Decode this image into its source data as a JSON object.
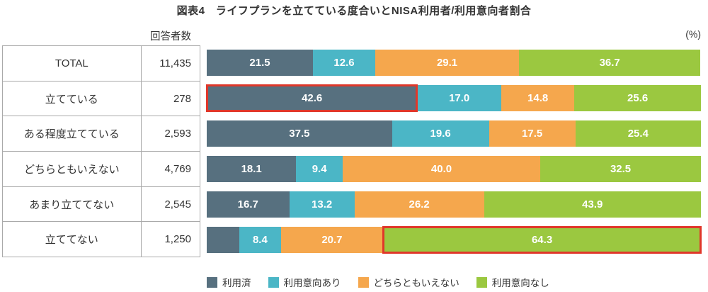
{
  "title": "図表4　ライフプランを立てている度合いとNISA利用者/利用意向者割合",
  "unit_label": "(%)",
  "chart_data": {
    "type": "bar",
    "stacked": true,
    "orientation": "horizontal",
    "unit": "%",
    "xlim": [
      0,
      100
    ],
    "respondent_header": "回答者数",
    "categories": [
      "TOTAL",
      "立てている",
      "ある程度立てている",
      "どちらともいえない",
      "あまり立ててない",
      "立ててない"
    ],
    "respondent_counts": [
      "11,435",
      "278",
      "2,593",
      "4,769",
      "2,545",
      "1,250"
    ],
    "series": [
      {
        "name": "利用済",
        "color": "#57707F",
        "values": [
          21.5,
          42.6,
          37.5,
          18.1,
          16.7,
          6.6
        ],
        "labels": [
          "21.5",
          "42.6",
          "37.5",
          "18.1",
          "16.7",
          ""
        ]
      },
      {
        "name": "利用意向あり",
        "color": "#4BB6C6",
        "values": [
          12.6,
          17.0,
          19.6,
          9.4,
          13.2,
          8.4
        ],
        "labels": [
          "12.6",
          "17.0",
          "19.6",
          "9.4",
          "13.2",
          "8.4"
        ]
      },
      {
        "name": "どちらともいえない",
        "color": "#F5A74D",
        "values": [
          29.1,
          14.8,
          17.5,
          40.0,
          26.2,
          20.7
        ],
        "labels": [
          "29.1",
          "14.8",
          "17.5",
          "40.0",
          "26.2",
          "20.7"
        ]
      },
      {
        "name": "利用意向なし",
        "color": "#9BC840",
        "values": [
          36.7,
          25.6,
          25.4,
          32.5,
          43.9,
          64.3
        ],
        "labels": [
          "36.7",
          "25.6",
          "25.4",
          "32.5",
          "43.9",
          "64.3"
        ]
      }
    ],
    "highlights": [
      {
        "row": 1,
        "series": 0
      },
      {
        "row": 5,
        "series": 3
      }
    ],
    "highlight_color": "#E0372A",
    "legend_position": "bottom"
  }
}
